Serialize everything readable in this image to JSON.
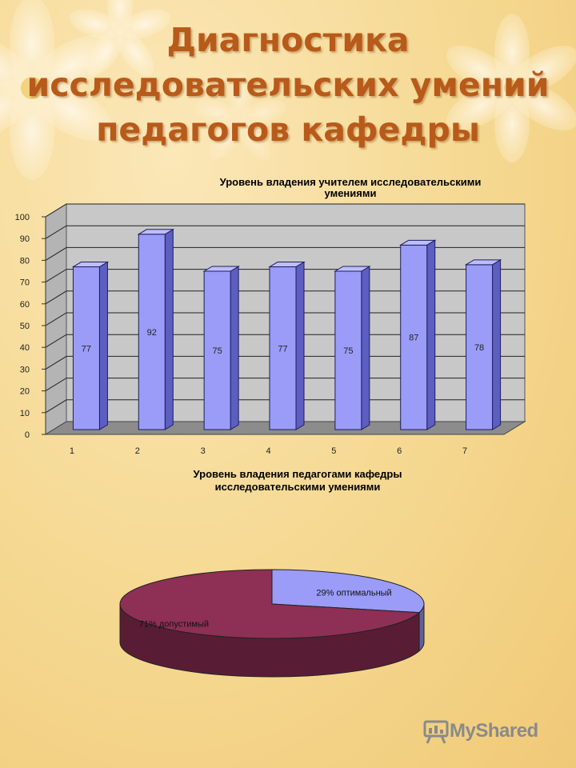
{
  "title_lines": [
    "Диагностика",
    "исследовательских умений",
    "педагогов кафедры"
  ],
  "chart_data": [
    {
      "type": "bar",
      "title": "Уровень владения учителем исследовательскими умениями",
      "categories": [
        "1",
        "2",
        "3",
        "4",
        "5",
        "6",
        "7"
      ],
      "values": [
        77,
        92,
        75,
        77,
        75,
        87,
        78
      ],
      "yticks": [
        0,
        10,
        20,
        30,
        40,
        50,
        60,
        70,
        80,
        90,
        100
      ],
      "ylim": [
        0,
        100
      ],
      "grid": true,
      "three_d": true,
      "colors": {
        "bar": "#9a9cf8",
        "bar_side": "#5c5ec2",
        "bar_top": "#bdbefc",
        "wall": "#c8c8c8",
        "floor": "#8c8c8c"
      }
    },
    {
      "type": "pie",
      "title": "Уровень владения педагогами кафедры исследовательскими умениями",
      "slices": [
        {
          "label": "29% оптимальный",
          "value": 29,
          "color": "#9a9cf8"
        },
        {
          "label": "71% допустимый",
          "value": 71,
          "color": "#8e2f55"
        }
      ],
      "three_d": true
    }
  ],
  "watermark": {
    "text": "MyShared",
    "icon": "presentation-board-icon"
  }
}
